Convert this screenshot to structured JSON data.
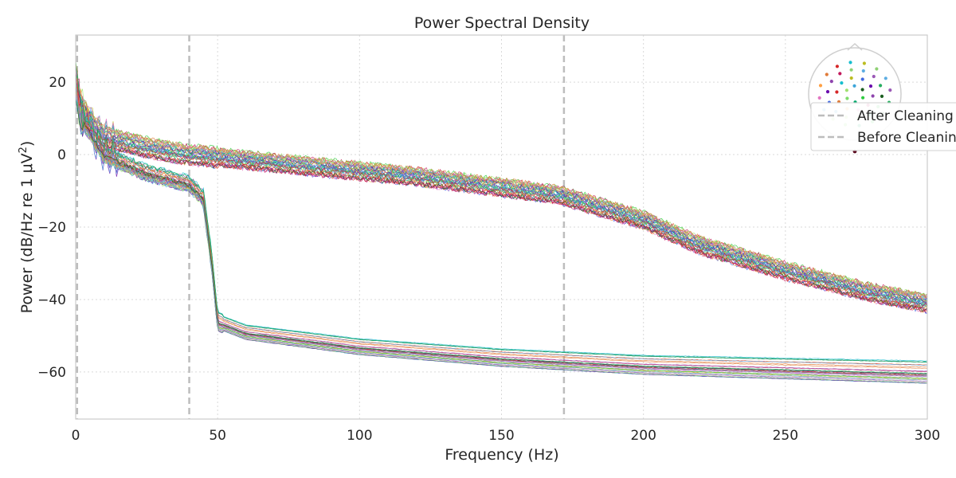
{
  "chart_data": {
    "type": "line",
    "title": "Power Spectral Density",
    "xlabel": "Frequency (Hz)",
    "ylabel_prefix": "Power (dB/Hz re 1 μV",
    "ylabel_sup": "2",
    "ylabel_suffix": ")",
    "xlim": [
      0,
      300
    ],
    "ylim": [
      -73,
      33
    ],
    "x_ticks": [
      0,
      50,
      100,
      150,
      200,
      250,
      300
    ],
    "x_tick_labels": [
      "0",
      "50",
      "100",
      "150",
      "200",
      "250",
      "300"
    ],
    "y_ticks": [
      20,
      0,
      -20,
      -40,
      -60
    ],
    "y_tick_labels": [
      "20",
      "0",
      "−20",
      "−40",
      "−60"
    ],
    "grid": true,
    "vlines_hz": [
      0.5,
      40,
      172
    ],
    "legend_position": "top-right",
    "legend": [
      {
        "label": "After Cleaning"
      },
      {
        "label": "Before Cleaning"
      }
    ],
    "series_groups": [
      {
        "group": "Before Cleaning",
        "description_points_hz_db": [
          [
            0,
            20
          ],
          [
            2,
            12
          ],
          [
            10,
            5
          ],
          [
            25,
            2
          ],
          [
            40,
            0
          ],
          [
            80,
            -3
          ],
          [
            120,
            -6
          ],
          [
            150,
            -9
          ],
          [
            170,
            -11
          ],
          [
            200,
            -18
          ],
          [
            220,
            -25
          ],
          [
            250,
            -32
          ],
          [
            280,
            -38
          ],
          [
            300,
            -41
          ]
        ]
      },
      {
        "group": "After Cleaning",
        "description_points_hz_db": [
          [
            0,
            20
          ],
          [
            2,
            10
          ],
          [
            10,
            0
          ],
          [
            25,
            -5
          ],
          [
            40,
            -8
          ],
          [
            45,
            -12
          ],
          [
            48,
            -30
          ],
          [
            50,
            -46
          ],
          [
            60,
            -49
          ],
          [
            100,
            -53
          ],
          [
            150,
            -56
          ],
          [
            200,
            -58
          ],
          [
            250,
            -59
          ],
          [
            300,
            -60
          ]
        ]
      }
    ]
  },
  "channel_colors": [
    "#1b5e20",
    "#2ecc40",
    "#00a86b",
    "#7fdc6b",
    "#a0e070",
    "#3da5d9",
    "#4169e1",
    "#6a0dad",
    "#8e44ad",
    "#c2185b",
    "#e377c2",
    "#ff9f43",
    "#e07b39",
    "#d62728",
    "#17becf",
    "#bcbd22",
    "#8fd175",
    "#5dade2",
    "#9b59b6",
    "#27ae60"
  ],
  "colors": {
    "grid": "#d9d9d9",
    "vline": "#bdbdbd",
    "axis": "#cccccc"
  }
}
